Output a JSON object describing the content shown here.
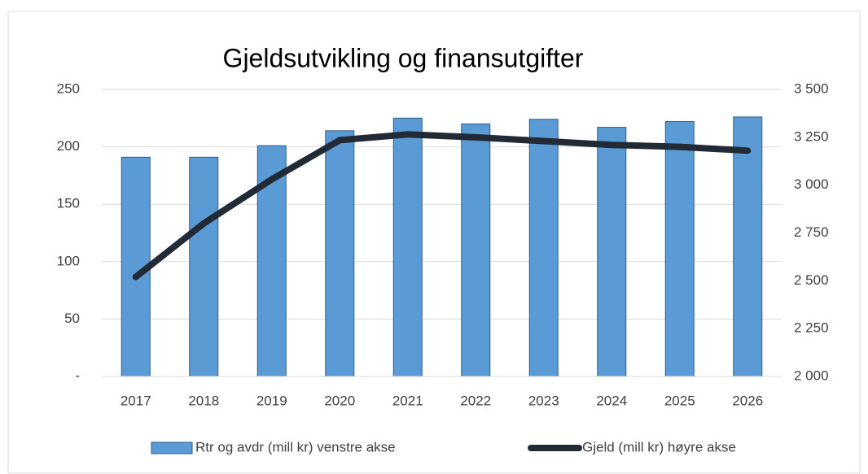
{
  "chart_data": {
    "type": "bar-line",
    "title": "Gjeldsutvikling og finansutgifter",
    "categories": [
      "2017",
      "2018",
      "2019",
      "2020",
      "2021",
      "2022",
      "2023",
      "2024",
      "2025",
      "2026"
    ],
    "series": [
      {
        "name": "Rtr og avdr (mill kr) venstre akse",
        "type": "bar",
        "color": "#5b9bd5",
        "values": [
          191,
          191,
          201,
          214,
          225,
          220,
          224,
          217,
          222,
          226
        ]
      },
      {
        "name": "Gjeld (mill kr) høyre akse",
        "type": "line",
        "axis": "y2",
        "color": "#222a35",
        "values": [
          2520,
          2800,
          3030,
          3235,
          3265,
          3250,
          3230,
          3210,
          3200,
          3180
        ]
      }
    ],
    "ylim": [
      0,
      250
    ],
    "yticks": [
      {
        "value": 0,
        "label": "-"
      },
      50,
      100,
      150,
      200,
      250
    ],
    "y2lim": [
      2000,
      3500
    ],
    "y2ticks": [
      {
        "value": 2000,
        "label": "2 000"
      },
      {
        "value": 2250,
        "label": "2 250"
      },
      {
        "value": 2500,
        "label": "2 500"
      },
      {
        "value": 2750,
        "label": "2 750"
      },
      {
        "value": 3000,
        "label": "3 000"
      },
      {
        "value": 3250,
        "label": "3 250"
      },
      {
        "value": 3500,
        "label": "3 500"
      }
    ],
    "grid": true,
    "legend": "bottom"
  }
}
